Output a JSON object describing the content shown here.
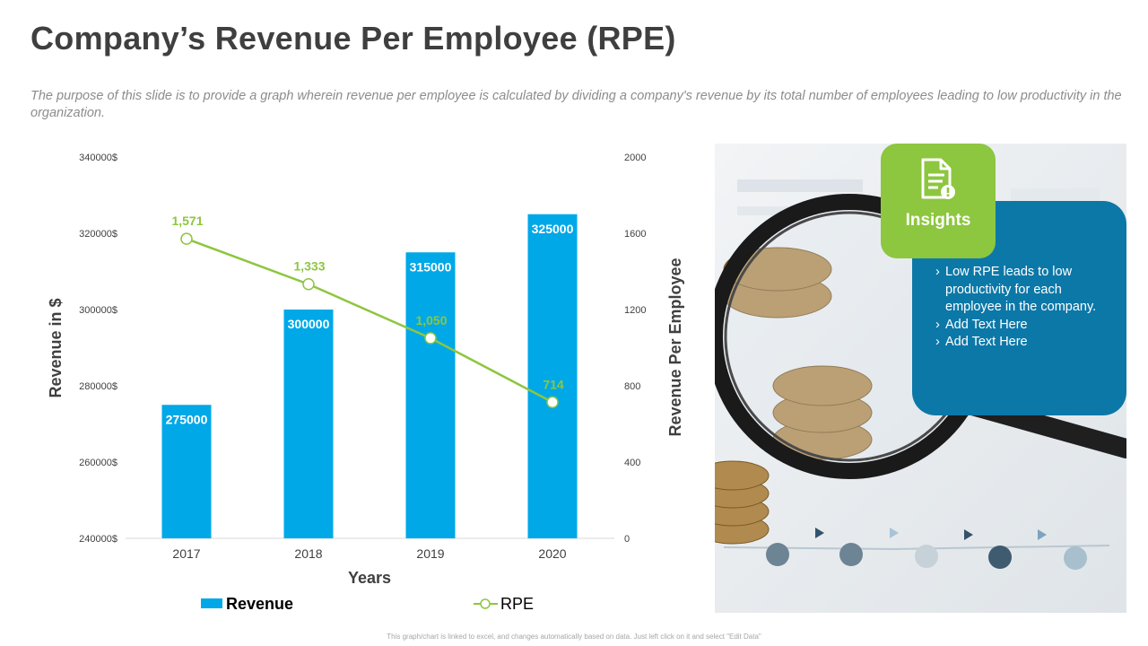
{
  "header": {
    "title": "Company’s Revenue Per Employee (RPE)",
    "subtitle": "The purpose of this slide is to provide a graph wherein revenue per employee is calculated by dividing a company's revenue by its total number of employees leading to low productivity in the organization."
  },
  "chart_data": {
    "type": "bar",
    "categories": [
      "2017",
      "2018",
      "2019",
      "2020"
    ],
    "series": [
      {
        "name": "Revenue",
        "type": "bar",
        "axis": "left",
        "values": [
          275000,
          300000,
          315000,
          325000
        ],
        "data_labels": [
          "275000",
          "300000",
          "315000",
          "325000"
        ],
        "color": "#00a8e8"
      },
      {
        "name": "RPE",
        "type": "line",
        "axis": "right",
        "values": [
          1571,
          1333,
          1050,
          714
        ],
        "data_labels": [
          "1,571",
          "1,333",
          "1,050",
          "714"
        ],
        "color": "#8dc63f"
      }
    ],
    "xlabel": "Years",
    "ylabel": "Revenue in $",
    "y2label": "Revenue Per Employee",
    "ylim": [
      240000,
      340000
    ],
    "yticks": [
      "240000$",
      "260000$",
      "280000$",
      "300000$",
      "320000$",
      "340000$"
    ],
    "y2lim": [
      0,
      2000
    ],
    "y2ticks": [
      "0",
      "400",
      "800",
      "1200",
      "1600",
      "2000"
    ],
    "legend": [
      {
        "label": "Revenue",
        "marker": "bar"
      },
      {
        "label": "RPE",
        "marker": "line"
      }
    ],
    "legend_position": "bottom"
  },
  "insights": {
    "title": "Insights",
    "icon": "document-alert-icon",
    "items": [
      "Low RPE leads to low productivity for each employee in the company.",
      "Add Text Here",
      "Add Text Here"
    ]
  },
  "footer": {
    "note": "This graph/chart is linked to excel, and changes automatically based on data. Just left click on it and select \"Edit Data\""
  },
  "colors": {
    "accent_green": "#8dc63f",
    "accent_blue": "#0c78a8",
    "bar_blue": "#00a8e8",
    "title_gray": "#3f3f3f"
  }
}
